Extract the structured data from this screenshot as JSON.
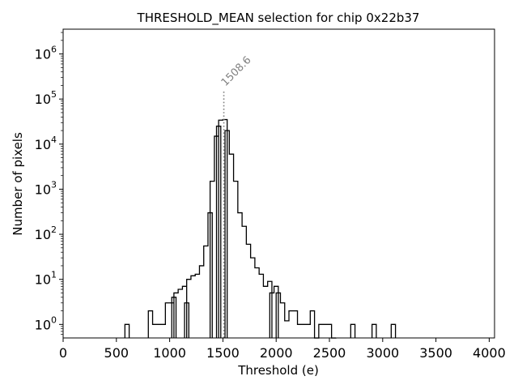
{
  "chart_data": {
    "type": "histogram",
    "title": "THRESHOLD_MEAN selection for chip 0x22b37",
    "xlabel": "Threshold (e)",
    "ylabel": "Number of pixels",
    "xlim": [
      0,
      4050
    ],
    "ylim_log10": [
      -0.3,
      6.55
    ],
    "yscale": "log",
    "xticks": [
      0,
      500,
      1000,
      1500,
      2000,
      2500,
      3000,
      3500,
      4000
    ],
    "xtick_labels": [
      "0",
      "500",
      "1000",
      "1500",
      "2000",
      "2500",
      "3000",
      "3500",
      "4000"
    ],
    "yticks": [
      {
        "base": "10",
        "exp": "0",
        "value": 1
      },
      {
        "base": "10",
        "exp": "1",
        "value": 10
      },
      {
        "base": "10",
        "exp": "2",
        "value": 100
      },
      {
        "base": "10",
        "exp": "3",
        "value": 1000
      },
      {
        "base": "10",
        "exp": "4",
        "value": 10000
      },
      {
        "base": "10",
        "exp": "5",
        "value": 100000
      },
      {
        "base": "10",
        "exp": "6",
        "value": 1000000
      }
    ],
    "bin_width": 40,
    "bins": [
      [
        580,
        1
      ],
      [
        800,
        2
      ],
      [
        840,
        1
      ],
      [
        880,
        1
      ],
      [
        920,
        1
      ],
      [
        960,
        3
      ],
      [
        1000,
        3
      ],
      [
        1020,
        4
      ],
      [
        1040,
        5
      ],
      [
        1080,
        6
      ],
      [
        1120,
        7
      ],
      [
        1140,
        3
      ],
      [
        1160,
        10
      ],
      [
        1200,
        12
      ],
      [
        1240,
        13
      ],
      [
        1280,
        20
      ],
      [
        1320,
        55
      ],
      [
        1360,
        300
      ],
      [
        1380,
        1500
      ],
      [
        1420,
        15000
      ],
      [
        1440,
        25000
      ],
      [
        1460,
        34000
      ],
      [
        1500,
        35000
      ],
      [
        1520,
        20000
      ],
      [
        1560,
        6000
      ],
      [
        1600,
        1500
      ],
      [
        1640,
        300
      ],
      [
        1680,
        150
      ],
      [
        1720,
        60
      ],
      [
        1760,
        30
      ],
      [
        1800,
        18
      ],
      [
        1840,
        13
      ],
      [
        1880,
        7
      ],
      [
        1920,
        9
      ],
      [
        1940,
        5
      ],
      [
        1980,
        7
      ],
      [
        2000,
        5
      ],
      [
        2040,
        3
      ],
      [
        2080,
        1.2
      ],
      [
        2120,
        2
      ],
      [
        2160,
        2
      ],
      [
        2200,
        1
      ],
      [
        2240,
        1
      ],
      [
        2280,
        1
      ],
      [
        2320,
        2
      ],
      [
        2360,
        0.5
      ],
      [
        2400,
        1
      ],
      [
        2440,
        1
      ],
      [
        2480,
        1
      ],
      [
        2520,
        0.5
      ],
      [
        2700,
        1
      ],
      [
        2900,
        1
      ],
      [
        3080,
        1
      ]
    ],
    "reference_line": {
      "value": 1508.6,
      "label": "1508.6"
    }
  }
}
